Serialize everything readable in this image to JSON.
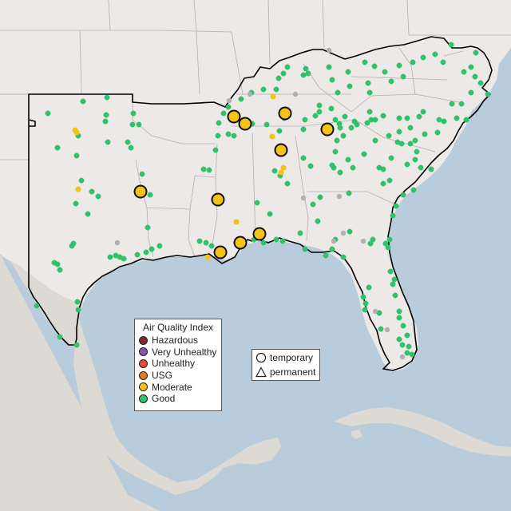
{
  "legend": {
    "title": "Air Quality Index",
    "categories": [
      {
        "label": "Hazardous",
        "color": "#7e2f2a"
      },
      {
        "label": "Very Unhealthy",
        "color": "#8f4fb0"
      },
      {
        "label": "Unhealthy",
        "color": "#e34b3a"
      },
      {
        "label": "USG",
        "color": "#e07b1f"
      },
      {
        "label": "Moderate",
        "color": "#f4c318"
      },
      {
        "label": "Good",
        "color": "#2fc26b"
      }
    ]
  },
  "monitor_type_legend": {
    "items": [
      {
        "label": "temporary",
        "shape": "circle-icon"
      },
      {
        "label": "permanent",
        "shape": "triangle-icon"
      }
    ]
  },
  "colors": {
    "land": "#ece9e6",
    "water": "#b9ccdc",
    "state_border": "#b5b0ab",
    "region_outline": "#000000",
    "no_data": "#b0b0b0"
  }
}
